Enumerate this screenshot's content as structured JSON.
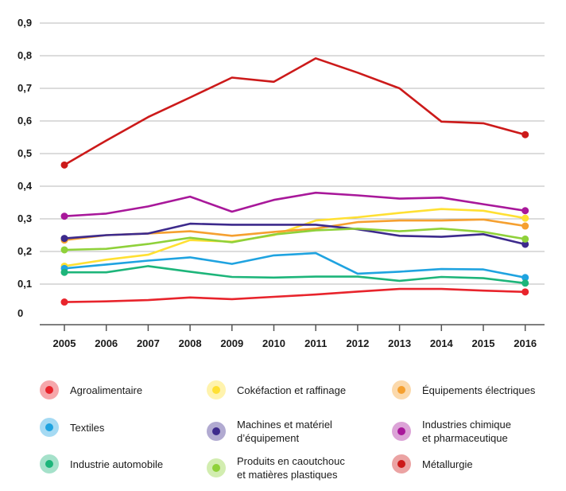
{
  "chart_data": {
    "type": "line",
    "title": "",
    "xlabel": "",
    "ylabel": "",
    "categories": [
      "2005",
      "2006",
      "2007",
      "2008",
      "2009",
      "2010",
      "2011",
      "2012",
      "2013",
      "2014",
      "2015",
      "2016"
    ],
    "ylim": [
      0,
      0.9
    ],
    "yticks": [
      "0",
      "0,1",
      "0,2",
      "0,3",
      "0,4",
      "0,5",
      "0,6",
      "0,7",
      "0,8",
      "0,9"
    ],
    "grid": true,
    "legend_position": "bottom",
    "series": [
      {
        "name": "Agroalimentaire",
        "color": "#e8242c",
        "values": [
          0.045,
          0.047,
          0.051,
          0.059,
          0.054,
          0.061,
          0.068,
          0.077,
          0.085,
          0.085,
          0.08,
          0.076
        ]
      },
      {
        "name": "Cokéfaction et raffinage",
        "color": "#ffe033",
        "values": [
          0.155,
          0.175,
          0.19,
          0.235,
          0.23,
          0.25,
          0.295,
          0.305,
          0.318,
          0.33,
          0.325,
          0.302
        ]
      },
      {
        "name": "Équipements électriques",
        "color": "#f5a030",
        "values": [
          0.235,
          0.25,
          0.255,
          0.262,
          0.248,
          0.26,
          0.27,
          0.29,
          0.295,
          0.295,
          0.298,
          0.278
        ]
      },
      {
        "name": "Textiles",
        "color": "#1fa3e0",
        "values": [
          0.148,
          0.16,
          0.172,
          0.182,
          0.162,
          0.188,
          0.195,
          0.132,
          0.138,
          0.146,
          0.145,
          0.12
        ]
      },
      {
        "name": "Machines et matériel\nd’équipement",
        "color": "#3d2a8c",
        "values": [
          0.24,
          0.25,
          0.255,
          0.285,
          0.282,
          0.282,
          0.282,
          0.268,
          0.248,
          0.245,
          0.253,
          0.222
        ]
      },
      {
        "name": "Industries chimique\net pharmaceutique",
        "color": "#a8189a",
        "values": [
          0.308,
          0.316,
          0.338,
          0.368,
          0.322,
          0.358,
          0.38,
          0.372,
          0.362,
          0.365,
          0.345,
          0.325
        ]
      },
      {
        "name": "Industrie automobile",
        "color": "#1db57a",
        "values": [
          0.136,
          0.136,
          0.155,
          0.138,
          0.122,
          0.12,
          0.123,
          0.123,
          0.11,
          0.122,
          0.118,
          0.103
        ]
      },
      {
        "name": "Produits en caoutchouc\net matières plastiques",
        "color": "#8fd13a",
        "values": [
          0.205,
          0.208,
          0.223,
          0.242,
          0.228,
          0.252,
          0.265,
          0.27,
          0.262,
          0.27,
          0.26,
          0.238
        ]
      },
      {
        "name": "Métallurgie",
        "color": "#cc1a1a",
        "values": [
          0.465,
          0.54,
          0.612,
          0.672,
          0.733,
          0.72,
          0.792,
          0.748,
          0.7,
          0.598,
          0.593,
          0.558
        ]
      }
    ]
  }
}
